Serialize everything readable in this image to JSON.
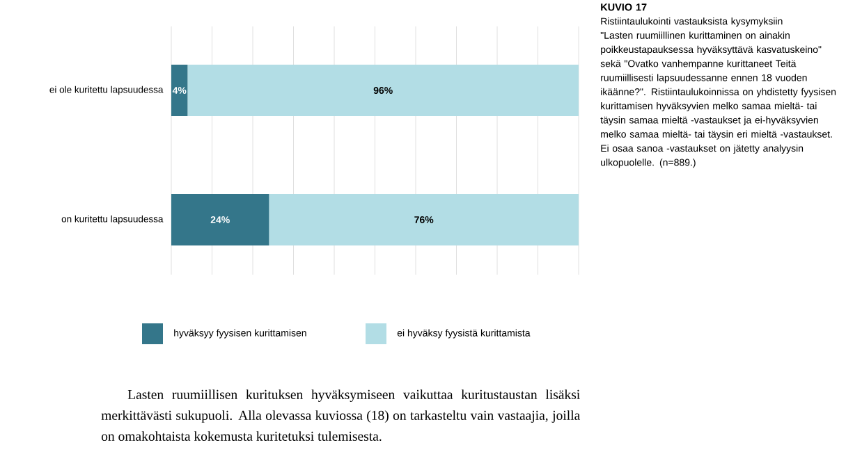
{
  "chart_data": {
    "type": "bar",
    "orientation": "horizontal",
    "stacked": true,
    "title": "KUVIO 17",
    "subtitle": "Ristiintaulukointi vastauksista kysymyksiin \"Lasten ruumiillinen kurittaminen on ainakin poikkeustapauksessa hyväksyttävä kasvatuskeino\" sekä \"Ovatko vanhempanne kurittaneet Teitä ruumiillisesti lapsuudessanne ennen 18 vuoden ikäänne?\". Ristiintaulukoinnissa on yhdistetty fyysisen kurittamisen hyväksyvien melko samaa mieltä- tai täysin samaa mieltä -vastaukset ja ei-hyväksyvien melko samaa mieltä- tai täysin eri mieltä -vastaukset.",
    "annotations": [
      "Ei osaa sanoa -vastaukset on jätetty analyysin ulkopuolelle. (n=889.)",
      "Lasten ruumiillisen kurituksen hyväksymiseen vaikuttaa kuritustaustan lisäksi merkittävästi sukupuoli. Alla olevassa kuviossa (18) on tarkasteltu vain vastaajia, joilla on omakohtaista kokemusta kuritetuksi tulemisesta."
    ],
    "categories": [
      "ei ole kuritettu lapsuudessa",
      "on kuritettu lapsuudessa"
    ],
    "series": [
      {
        "name": "hyväksyy fyysisen kurittamisen",
        "color": "#34768a",
        "values": [
          4,
          24
        ],
        "value_labels": [
          "4%",
          "24%"
        ]
      },
      {
        "name": "ei hyväksy fyysistä kurittamista",
        "color": "#b2dde5",
        "values": [
          96,
          76
        ],
        "value_labels": [
          "96%",
          "76%"
        ]
      }
    ],
    "xlim": [
      0,
      100
    ],
    "xticks": [
      {
        "value": 0,
        "label": null
      },
      {
        "value": 10,
        "label": null
      },
      {
        "value": 20,
        "label": null
      },
      {
        "value": 30,
        "label": null
      },
      {
        "value": 40,
        "label": null
      },
      {
        "value": 50,
        "label": null
      },
      {
        "value": 60,
        "label": null
      },
      {
        "value": 70,
        "label": null
      },
      {
        "value": 80,
        "label": null
      },
      {
        "value": 90,
        "label": null
      },
      {
        "value": 100,
        "label": null
      }
    ],
    "grid": "x",
    "legend": "bottom",
    "tick_labels": "y"
  }
}
